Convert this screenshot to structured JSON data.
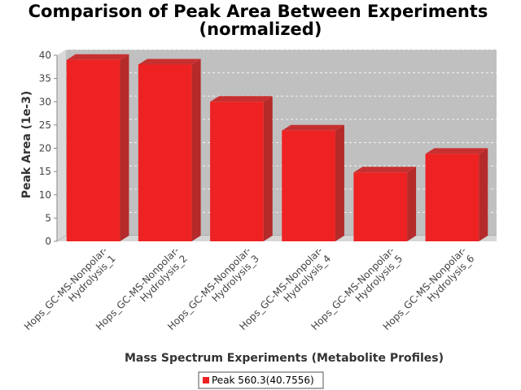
{
  "chart_data": {
    "type": "bar",
    "title_line1": "Comparison of Peak Area Between Experiments",
    "title_line2": "(normalized)",
    "xlabel": "Mass Spectrum Experiments (Metabolite Profiles)",
    "ylabel": "Peak Area (1e-3)",
    "ylim": [
      0,
      40
    ],
    "yticks": [
      0,
      5,
      10,
      15,
      20,
      25,
      30,
      35,
      40
    ],
    "grid": true,
    "legend_placement": "bottom-center",
    "categories": [
      {
        "line1": "Hops_GC-MS-Nonpolar-",
        "line2": "Hydrolysis_1"
      },
      {
        "line1": "Hops_GC-MS-Nonpolar-",
        "line2": "Hydrolysis_2"
      },
      {
        "line1": "Hops_GC-MS-Nonpolar-",
        "line2": "Hydrolysis_3"
      },
      {
        "line1": "Hops_GC-MS-Nonpolar-",
        "line2": "Hydrolysis_4"
      },
      {
        "line1": "Hops_GC-MS-Nonpolar-",
        "line2": "Hydrolysis_5"
      },
      {
        "line1": "Hops_GC-MS-Nonpolar-",
        "line2": "Hydrolysis_6"
      }
    ],
    "series": [
      {
        "name": "Peak 560.3(40.7556)",
        "color": "#ee2222",
        "values": [
          39.0,
          38.0,
          30.0,
          23.8,
          14.8,
          18.8
        ]
      }
    ]
  }
}
